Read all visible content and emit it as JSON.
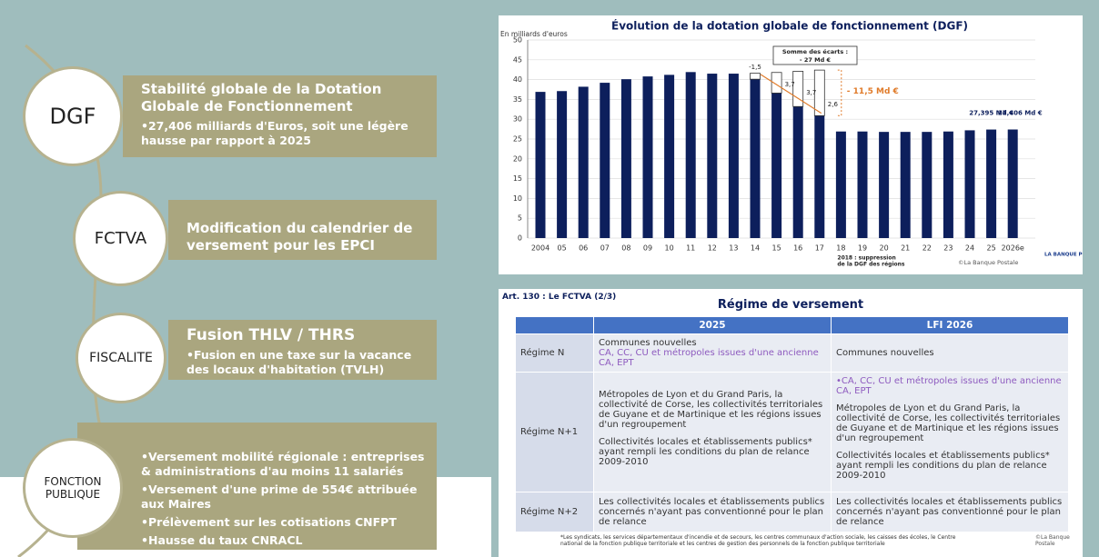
{
  "left_items": [
    {
      "label": "DGF",
      "title": "Stabilité globale de la Dotation Globale de Fonctionnement",
      "bullets": [
        "•27,406 milliards d'Euros, soit une légère hausse par rapport à 2025"
      ]
    },
    {
      "label": "FCTVA",
      "title": "Modification du calendrier de versement pour les EPCI",
      "bullets": []
    },
    {
      "label": "FISCALITE",
      "title": "Fusion THLV / THRS",
      "bullets": [
        "•Fusion en une taxe sur la vacance des locaux d'habitation (TVLH)"
      ]
    },
    {
      "label": "FONCTION PUBLIQUE",
      "title": "",
      "bullets": [
        "•Versement mobilité régionale : entreprises & administrations d'au moins 11 salariés",
        "•Versement d'une prime de 554€ attribuée aux Maires",
        "•Prélèvement sur les cotisations CNFPT",
        "•Hausse du taux CNRACL"
      ]
    }
  ],
  "chart_data": {
    "type": "bar",
    "title": "Évolution de la dotation globale de fonctionnement (DGF)",
    "y_label": "En milliards d'euros",
    "categories": [
      "2004",
      "05",
      "06",
      "07",
      "08",
      "09",
      "10",
      "11",
      "12",
      "13",
      "14",
      "15",
      "16",
      "17",
      "18",
      "19",
      "20",
      "21",
      "22",
      "23",
      "24",
      "25",
      "2026e"
    ],
    "values": [
      36.9,
      37.1,
      38.2,
      39.2,
      40.1,
      40.8,
      41.2,
      41.9,
      41.5,
      41.5,
      40.1,
      36.6,
      33.2,
      30.9,
      26.9,
      26.9,
      26.8,
      26.8,
      26.8,
      26.9,
      27.2,
      27.395,
      27.406
    ],
    "color": "#0d1f5c",
    "stack_values": [
      null,
      null,
      null,
      null,
      null,
      null,
      null,
      null,
      null,
      null,
      1.5,
      5.2,
      8.9,
      11.5,
      null,
      null,
      null,
      null,
      null,
      null,
      null,
      null,
      null
    ],
    "stack_color": "#ffffff",
    "ylim": [
      0,
      50
    ],
    "yticks": [
      0,
      5,
      10,
      15,
      20,
      25,
      30,
      35,
      40,
      45,
      50
    ],
    "annotations": [
      "-1,5",
      "3,7",
      "3,7",
      "2,6",
      "Somme des écarts :",
      "- 27 Md €",
      "- 11,5 Md €",
      "27,395 Md €",
      "27,406 Md €",
      "2018 : suppression",
      "de la DGF des régions",
      "©La Banque Postale",
      "LA BANQUE POSTALE"
    ]
  },
  "table": {
    "kicker": "Art. 130 : Le FCTVA (2/3)",
    "title": "Régime de versement",
    "header": [
      "2025",
      "LFI 2026"
    ],
    "rows": [
      {
        "label": "Régime N",
        "c2025": [
          "Communes nouvelles"
        ],
        "c2025_purple": "CA, CC, CU et métropoles issues d'une ancienne CA, EPT",
        "c2026": [
          "Communes nouvelles"
        ]
      },
      {
        "label": "Régime N+1",
        "c2026_purple": "•CA, CC, CU et métropoles issues d'une ancienne CA, EPT",
        "c2025": [
          "Métropoles de Lyon et du Grand Paris, la collectivité de Corse, les collectivités territoriales de Guyane et de Martinique et les régions issues d'un regroupement",
          "Collectivités locales et établissements publics* ayant rempli les conditions du plan de relance 2009-2010"
        ],
        "c2026": [
          "Métropoles de Lyon et du Grand Paris, la collectivité de Corse, les collectivités territoriales de Guyane et de Martinique et les régions issues d'un regroupement",
          "Collectivités locales et établissements publics* ayant rempli les conditions du plan de relance 2009-2010"
        ]
      },
      {
        "label": "Régime N+2",
        "c2025": [
          "Les collectivités locales et établissements publics concernés n'ayant pas conventionné pour le plan de relance"
        ],
        "c2026": [
          "Les collectivités locales et établissements publics concernés n'ayant pas conventionné pour le plan de relance"
        ]
      }
    ],
    "footnote": "*Les syndicats, les services départementaux d'incendie et de secours, les centres communaux d'action sociale, les caisses des écoles, le Centre national de la fonction publique territoriale et les centres de gestion des personnels de la fonction publique territoriale",
    "credit": "©La Banque Postale"
  }
}
